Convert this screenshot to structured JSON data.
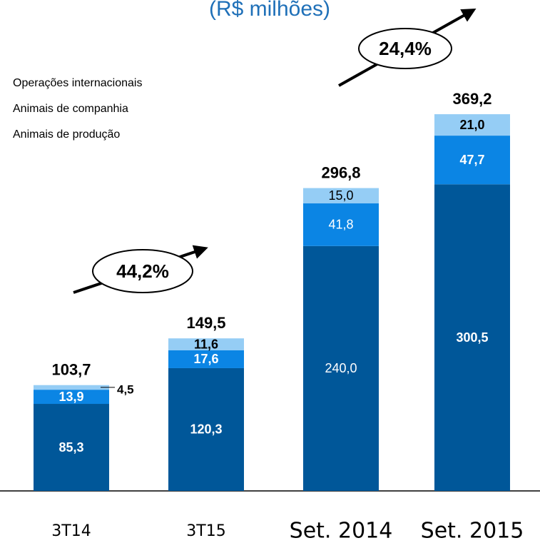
{
  "chart_data": {
    "type": "bar",
    "stacked": true,
    "title": "(R$ milhões)",
    "categories": [
      "3T14",
      "3T15",
      "Set. 2014",
      "Set. 2015"
    ],
    "series": [
      {
        "name": "Animais de produção",
        "color": "#005799",
        "values": [
          85.3,
          120.3,
          240.0,
          300.5
        ],
        "value_labels": [
          "85,3",
          "120,3",
          "240,0",
          "300,5"
        ]
      },
      {
        "name": "Animais de companhia",
        "color": "#0b85e4",
        "values": [
          13.9,
          17.6,
          41.8,
          47.7
        ],
        "value_labels": [
          "13,9",
          "17,6",
          "41,8",
          "47,7"
        ]
      },
      {
        "name": "Operações internacionais",
        "color": "#95cdf5",
        "values": [
          4.5,
          11.6,
          15.0,
          21.0
        ],
        "value_labels": [
          "4,5",
          "11,6",
          "15,0",
          "21,0"
        ]
      }
    ],
    "totals": [
      103.7,
      149.5,
      296.8,
      369.2
    ],
    "totals_labels": [
      "103,7",
      "149,5",
      "296,8",
      "369,2"
    ],
    "annotations": [
      {
        "value": 44.2,
        "label": "44,2%"
      },
      {
        "value": 24.4,
        "label": "24,4%"
      }
    ]
  }
}
